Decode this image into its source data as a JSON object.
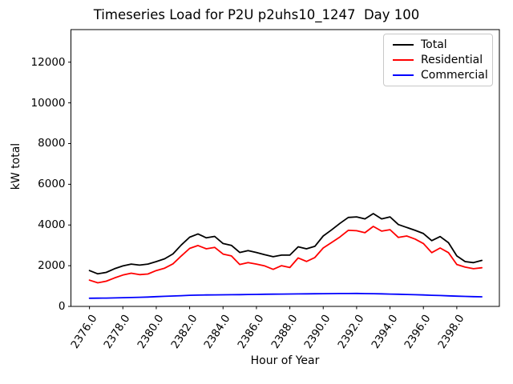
{
  "chart_data": {
    "type": "line",
    "title": "Timeseries Load for P2U p2uhs10_1247  Day 100",
    "xlabel": "Hour of Year",
    "ylabel": "kW total",
    "xlim": [
      2374.89,
      2400.55
    ],
    "ylim": [
      0,
      13600
    ],
    "grid": false,
    "legend_position": "upper right",
    "xtick_values": [
      2376,
      2378,
      2380,
      2382,
      2384,
      2386,
      2388,
      2390,
      2392,
      2394,
      2396,
      2398
    ],
    "xtick_labels": [
      "2376.0",
      "2378.0",
      "2380.0",
      "2382.0",
      "2384.0",
      "2386.0",
      "2388.0",
      "2390.0",
      "2392.0",
      "2394.0",
      "2396.0",
      "2398.0"
    ],
    "ytick_values": [
      0,
      2000,
      4000,
      6000,
      8000,
      10000,
      12000
    ],
    "ytick_labels": [
      "0",
      "2000",
      "4000",
      "6000",
      "8000",
      "10000",
      "12000"
    ],
    "x": [
      2376.0,
      2376.5,
      2377.0,
      2377.5,
      2378.0,
      2378.5,
      2379.0,
      2379.5,
      2380.0,
      2380.5,
      2381.0,
      2381.5,
      2382.0,
      2382.5,
      2383.0,
      2383.5,
      2384.0,
      2384.5,
      2385.0,
      2385.5,
      2386.0,
      2386.5,
      2387.0,
      2387.5,
      2388.0,
      2388.5,
      2389.0,
      2389.5,
      2390.0,
      2390.5,
      2391.0,
      2391.5,
      2392.0,
      2392.5,
      2393.0,
      2393.5,
      2394.0,
      2394.5,
      2395.0,
      2395.5,
      2396.0,
      2396.5,
      2397.0,
      2397.5,
      2398.0,
      2398.5,
      2399.0,
      2399.5
    ],
    "series": [
      {
        "name": "Total",
        "color": "#000000",
        "values": [
          1760,
          1600,
          1670,
          1850,
          1990,
          2080,
          2030,
          2080,
          2200,
          2340,
          2580,
          3020,
          3400,
          3560,
          3370,
          3440,
          3090,
          3000,
          2650,
          2740,
          2650,
          2540,
          2440,
          2520,
          2520,
          2930,
          2830,
          2950,
          3460,
          3760,
          4080,
          4370,
          4400,
          4300,
          4560,
          4300,
          4400,
          4020,
          3880,
          3740,
          3580,
          3230,
          3430,
          3130,
          2480,
          2200,
          2150,
          2260
        ]
      },
      {
        "name": "Residential",
        "color": "#ff0000",
        "values": [
          1290,
          1160,
          1240,
          1400,
          1540,
          1630,
          1560,
          1590,
          1760,
          1880,
          2090,
          2480,
          2850,
          2990,
          2830,
          2900,
          2570,
          2480,
          2060,
          2150,
          2080,
          1990,
          1820,
          2000,
          1910,
          2380,
          2210,
          2400,
          2870,
          3140,
          3410,
          3740,
          3720,
          3620,
          3930,
          3700,
          3770,
          3390,
          3460,
          3310,
          3090,
          2640,
          2870,
          2640,
          2060,
          1930,
          1850,
          1900
        ]
      },
      {
        "name": "Commercial",
        "color": "#0000ff",
        "values": [
          400,
          405,
          410,
          418,
          428,
          438,
          448,
          460,
          478,
          495,
          510,
          528,
          545,
          556,
          562,
          565,
          568,
          572,
          578,
          584,
          590,
          596,
          600,
          605,
          610,
          615,
          618,
          622,
          626,
          630,
          632,
          634,
          635,
          630,
          624,
          616,
          606,
          596,
          586,
          575,
          562,
          548,
          533,
          518,
          503,
          490,
          478,
          470
        ]
      }
    ]
  }
}
